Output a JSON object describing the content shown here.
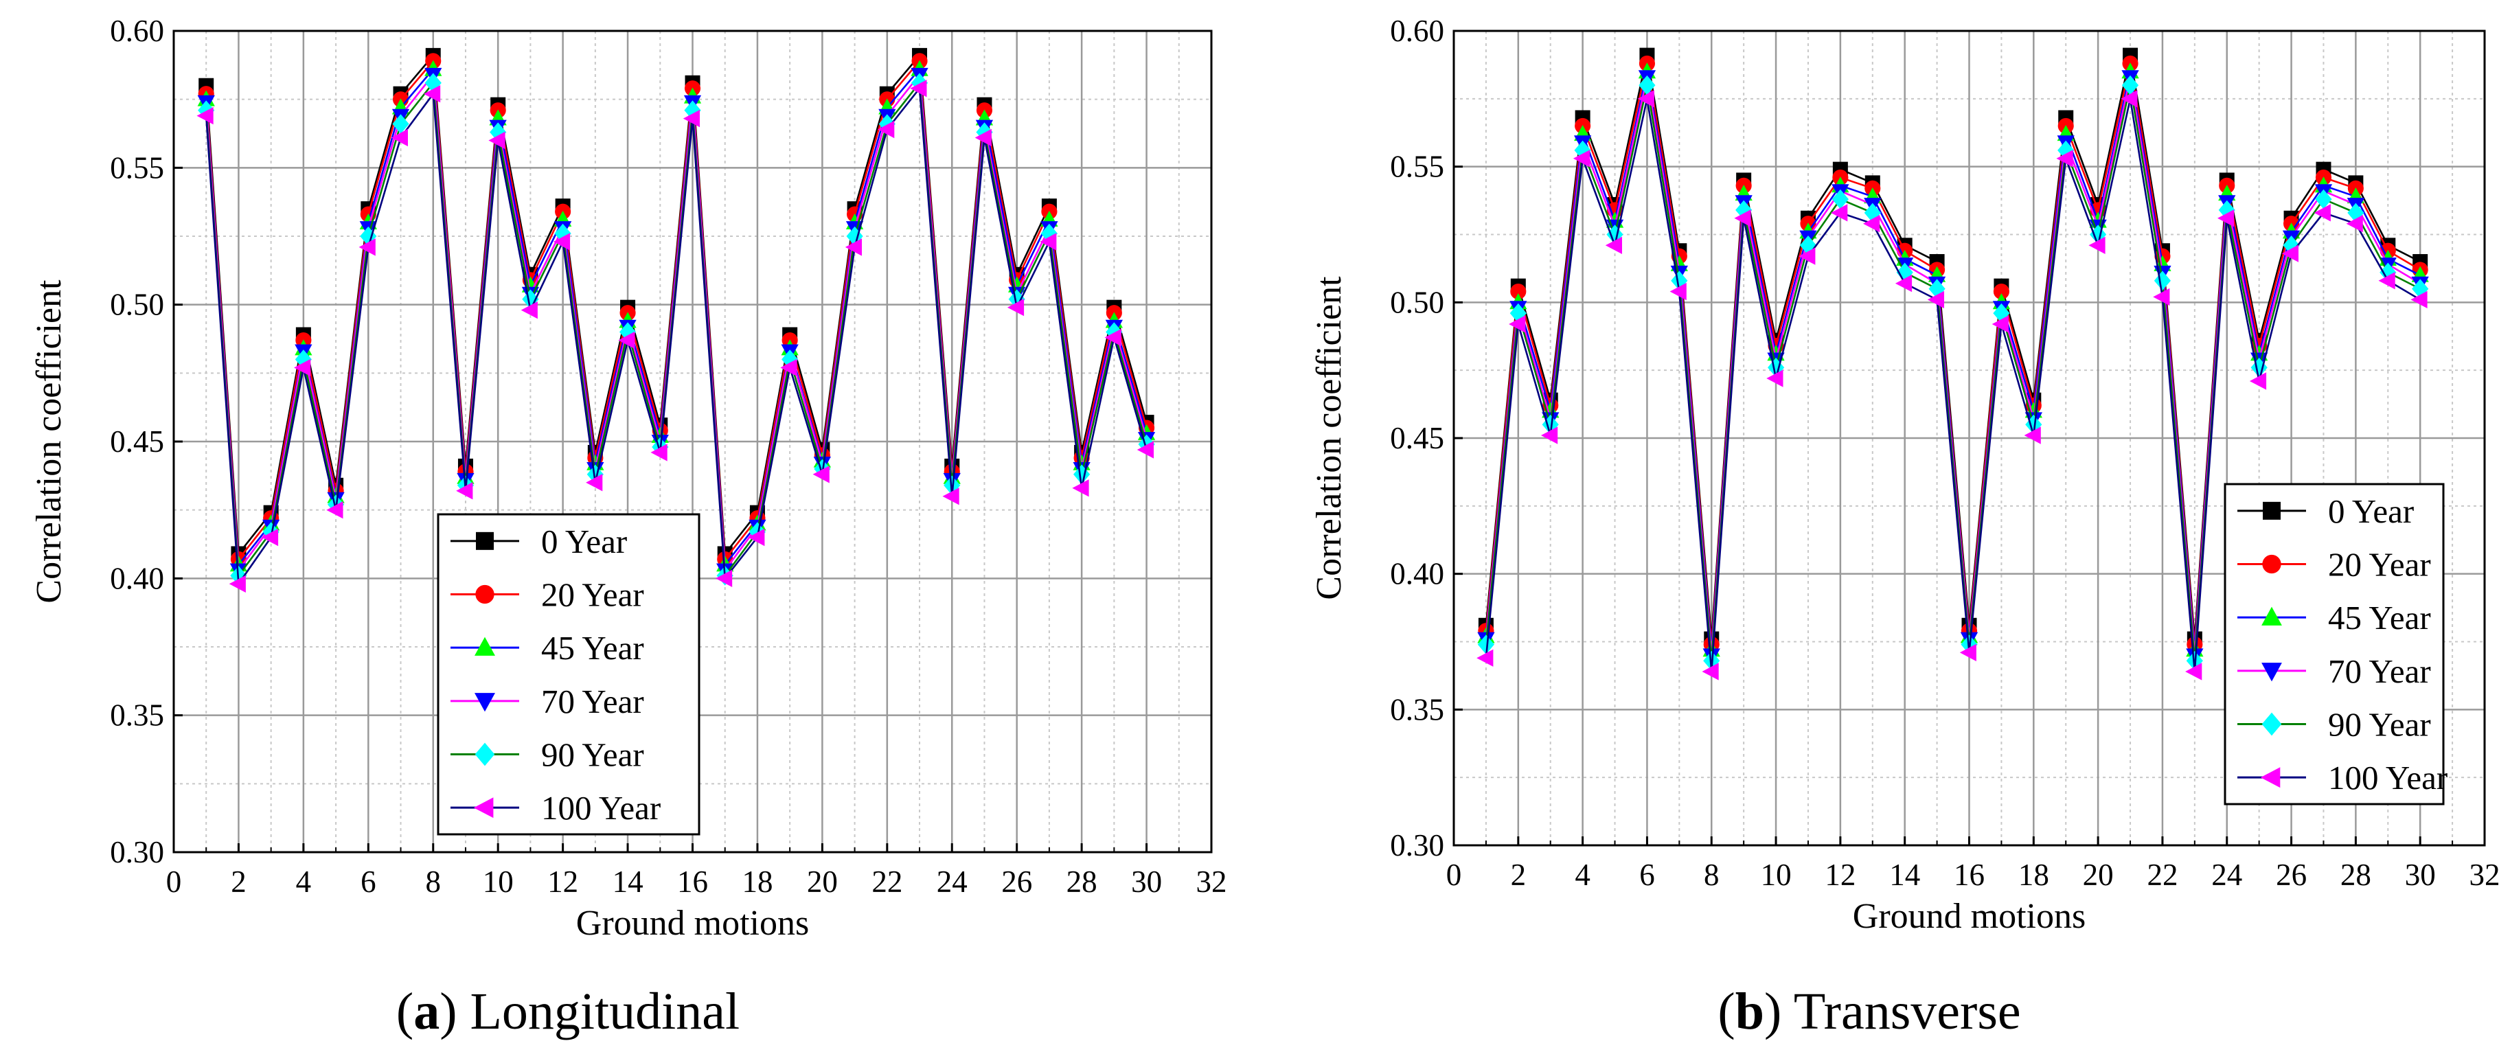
{
  "chart_data": [
    {
      "type": "line",
      "panel_label": "a",
      "caption": "Longitudinal",
      "title": "",
      "xlabel": "Ground motions",
      "ylabel": "Correlation coefficient",
      "xlim": [
        0,
        32
      ],
      "ylim": [
        0.3,
        0.6
      ],
      "xticks": [
        0,
        2,
        4,
        6,
        8,
        10,
        12,
        14,
        16,
        18,
        20,
        22,
        24,
        26,
        28,
        30,
        32
      ],
      "yticks": [
        "0.30",
        "0.35",
        "0.40",
        "0.45",
        "0.50",
        "0.55",
        "0.60"
      ],
      "grid": true,
      "legend_position": "lower-center",
      "x": [
        1,
        2,
        3,
        4,
        5,
        6,
        7,
        8,
        9,
        10,
        11,
        12,
        13,
        14,
        15,
        16,
        17,
        18,
        19,
        20,
        21,
        22,
        23,
        24,
        25,
        26,
        27,
        28,
        29,
        30
      ],
      "series": [
        {
          "name": "0 Year",
          "values": [
            0.58,
            0.409,
            0.424,
            0.489,
            0.434,
            0.535,
            0.577,
            0.591,
            0.441,
            0.573,
            0.511,
            0.536,
            0.446,
            0.499,
            0.456,
            0.581,
            0.409,
            0.424,
            0.489,
            0.447,
            0.535,
            0.577,
            0.591,
            0.441,
            0.573,
            0.511,
            0.536,
            0.446,
            0.499,
            0.457
          ]
        },
        {
          "name": "20 Year",
          "values": [
            0.577,
            0.407,
            0.422,
            0.487,
            0.432,
            0.533,
            0.575,
            0.589,
            0.439,
            0.571,
            0.509,
            0.534,
            0.444,
            0.497,
            0.454,
            0.579,
            0.407,
            0.422,
            0.487,
            0.445,
            0.533,
            0.575,
            0.589,
            0.439,
            0.571,
            0.509,
            0.534,
            0.444,
            0.497,
            0.455
          ]
        },
        {
          "name": "45 Year",
          "values": [
            0.575,
            0.405,
            0.42,
            0.484,
            0.43,
            0.53,
            0.572,
            0.586,
            0.437,
            0.568,
            0.507,
            0.531,
            0.442,
            0.494,
            0.452,
            0.576,
            0.405,
            0.42,
            0.484,
            0.443,
            0.53,
            0.572,
            0.586,
            0.437,
            0.568,
            0.507,
            0.531,
            0.442,
            0.494,
            0.453
          ]
        },
        {
          "name": "70 Year",
          "values": [
            0.574,
            0.403,
            0.419,
            0.483,
            0.429,
            0.528,
            0.569,
            0.584,
            0.436,
            0.565,
            0.504,
            0.528,
            0.44,
            0.492,
            0.45,
            0.574,
            0.403,
            0.419,
            0.483,
            0.442,
            0.528,
            0.569,
            0.584,
            0.436,
            0.565,
            0.504,
            0.528,
            0.44,
            0.492,
            0.451
          ]
        },
        {
          "name": "90 Year",
          "values": [
            0.571,
            0.401,
            0.417,
            0.48,
            0.427,
            0.525,
            0.566,
            0.581,
            0.434,
            0.563,
            0.502,
            0.526,
            0.438,
            0.49,
            0.448,
            0.571,
            0.401,
            0.417,
            0.48,
            0.44,
            0.525,
            0.566,
            0.581,
            0.434,
            0.563,
            0.502,
            0.526,
            0.438,
            0.49,
            0.449
          ]
        },
        {
          "name": "100 Year",
          "values": [
            0.569,
            0.398,
            0.415,
            0.477,
            0.425,
            0.521,
            0.561,
            0.577,
            0.432,
            0.56,
            0.498,
            0.523,
            0.435,
            0.487,
            0.446,
            0.568,
            0.4,
            0.415,
            0.477,
            0.438,
            0.521,
            0.564,
            0.579,
            0.43,
            0.561,
            0.499,
            0.523,
            0.433,
            0.488,
            0.447
          ]
        }
      ]
    },
    {
      "type": "line",
      "panel_label": "b",
      "caption": "Transverse",
      "title": "",
      "xlabel": "Ground motions",
      "ylabel": "Correlation coefficient",
      "xlim": [
        0,
        32
      ],
      "ylim": [
        0.3,
        0.6
      ],
      "xticks": [
        0,
        2,
        4,
        6,
        8,
        10,
        12,
        14,
        16,
        18,
        20,
        22,
        24,
        26,
        28,
        30,
        32
      ],
      "yticks": [
        "0.30",
        "0.35",
        "0.40",
        "0.45",
        "0.50",
        "0.55",
        "0.60"
      ],
      "grid": true,
      "legend_position": "lower-right",
      "x": [
        1,
        2,
        3,
        4,
        5,
        6,
        7,
        8,
        9,
        10,
        11,
        12,
        13,
        14,
        15,
        16,
        17,
        18,
        19,
        20,
        21,
        22,
        23,
        24,
        25,
        26,
        27,
        28,
        29,
        30
      ],
      "series": [
        {
          "name": "0 Year",
          "values": [
            0.381,
            0.506,
            0.464,
            0.568,
            0.536,
            0.591,
            0.519,
            0.376,
            0.545,
            0.486,
            0.531,
            0.549,
            0.544,
            0.521,
            0.515,
            0.381,
            0.506,
            0.464,
            0.568,
            0.536,
            0.591,
            0.519,
            0.376,
            0.545,
            0.486,
            0.531,
            0.549,
            0.544,
            0.521,
            0.515
          ]
        },
        {
          "name": "20 Year",
          "values": [
            0.379,
            0.504,
            0.462,
            0.565,
            0.534,
            0.588,
            0.517,
            0.374,
            0.543,
            0.484,
            0.529,
            0.546,
            0.542,
            0.519,
            0.512,
            0.379,
            0.504,
            0.462,
            0.565,
            0.534,
            0.588,
            0.517,
            0.374,
            0.543,
            0.484,
            0.529,
            0.546,
            0.542,
            0.519,
            0.512
          ]
        },
        {
          "name": "45 Year",
          "values": [
            0.377,
            0.5,
            0.46,
            0.562,
            0.53,
            0.585,
            0.514,
            0.372,
            0.54,
            0.481,
            0.526,
            0.543,
            0.539,
            0.516,
            0.51,
            0.377,
            0.5,
            0.46,
            0.562,
            0.53,
            0.585,
            0.514,
            0.372,
            0.54,
            0.481,
            0.526,
            0.543,
            0.539,
            0.516,
            0.51
          ]
        },
        {
          "name": "70 Year",
          "values": [
            0.376,
            0.498,
            0.457,
            0.559,
            0.528,
            0.583,
            0.511,
            0.37,
            0.537,
            0.479,
            0.524,
            0.541,
            0.536,
            0.514,
            0.507,
            0.376,
            0.498,
            0.457,
            0.559,
            0.528,
            0.583,
            0.511,
            0.37,
            0.537,
            0.479,
            0.524,
            0.541,
            0.536,
            0.514,
            0.507
          ]
        },
        {
          "name": "90 Year",
          "values": [
            0.374,
            0.496,
            0.455,
            0.556,
            0.525,
            0.58,
            0.508,
            0.368,
            0.534,
            0.476,
            0.521,
            0.538,
            0.533,
            0.511,
            0.505,
            0.374,
            0.496,
            0.455,
            0.556,
            0.525,
            0.58,
            0.508,
            0.368,
            0.534,
            0.476,
            0.521,
            0.538,
            0.533,
            0.511,
            0.505
          ]
        },
        {
          "name": "100 Year",
          "values": [
            0.369,
            0.492,
            0.451,
            0.553,
            0.521,
            0.575,
            0.504,
            0.364,
            0.531,
            0.472,
            0.517,
            0.533,
            0.529,
            0.507,
            0.501,
            0.371,
            0.492,
            0.451,
            0.553,
            0.521,
            0.575,
            0.502,
            0.364,
            0.531,
            0.471,
            0.518,
            0.533,
            0.529,
            0.508,
            0.501
          ]
        }
      ]
    }
  ],
  "series_styles": [
    {
      "name": "0 Year",
      "line_color": "#000000",
      "marker_color": "#000000",
      "marker": "square"
    },
    {
      "name": "20 Year",
      "line_color": "#ff0000",
      "marker_color": "#ff0000",
      "marker": "circle"
    },
    {
      "name": "45 Year",
      "line_color": "#0000ff",
      "marker_color": "#00ff00",
      "marker": "triangle-up"
    },
    {
      "name": "70 Year",
      "line_color": "#ff00ff",
      "marker_color": "#0000ff",
      "marker": "triangle-down"
    },
    {
      "name": "90 Year",
      "line_color": "#008000",
      "marker_color": "#00ffff",
      "marker": "diamond"
    },
    {
      "name": "100 Year",
      "line_color": "#000080",
      "marker_color": "#ff00ff",
      "marker": "triangle-left"
    }
  ],
  "colors": {
    "grid": "#9a9a9a",
    "minor_grid": "#c8c8c8",
    "axis": "#000000",
    "background": "#ffffff"
  }
}
